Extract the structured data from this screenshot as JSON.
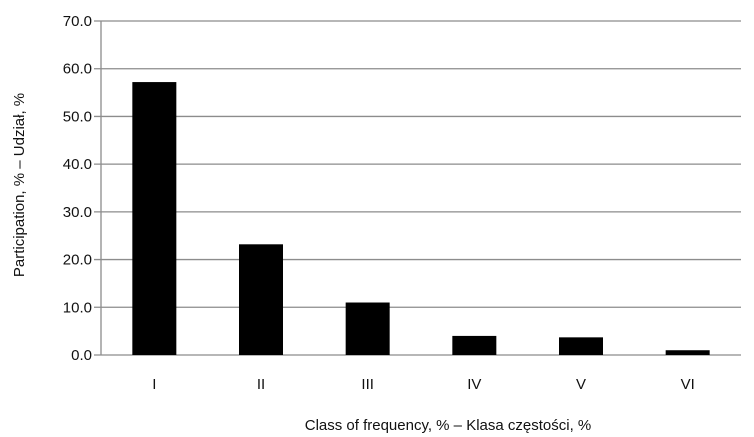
{
  "chart_data": {
    "type": "bar",
    "categories": [
      "I",
      "II",
      "III",
      "IV",
      "V",
      "VI"
    ],
    "values": [
      57.2,
      23.2,
      11.0,
      4.0,
      3.7,
      1.0
    ],
    "title": "",
    "xlabel": "Class of frequency, % – Klasa częstości, %",
    "ylabel": "Participation, % – Udział, %",
    "ylim": [
      0,
      70
    ],
    "yticks": [
      "0.0",
      "10.0",
      "20.0",
      "30.0",
      "40.0",
      "50.0",
      "60.0",
      "70.0"
    ],
    "grid": true,
    "legend": "none",
    "bar_color": "#000000",
    "grid_color": "#8c8c8c"
  }
}
